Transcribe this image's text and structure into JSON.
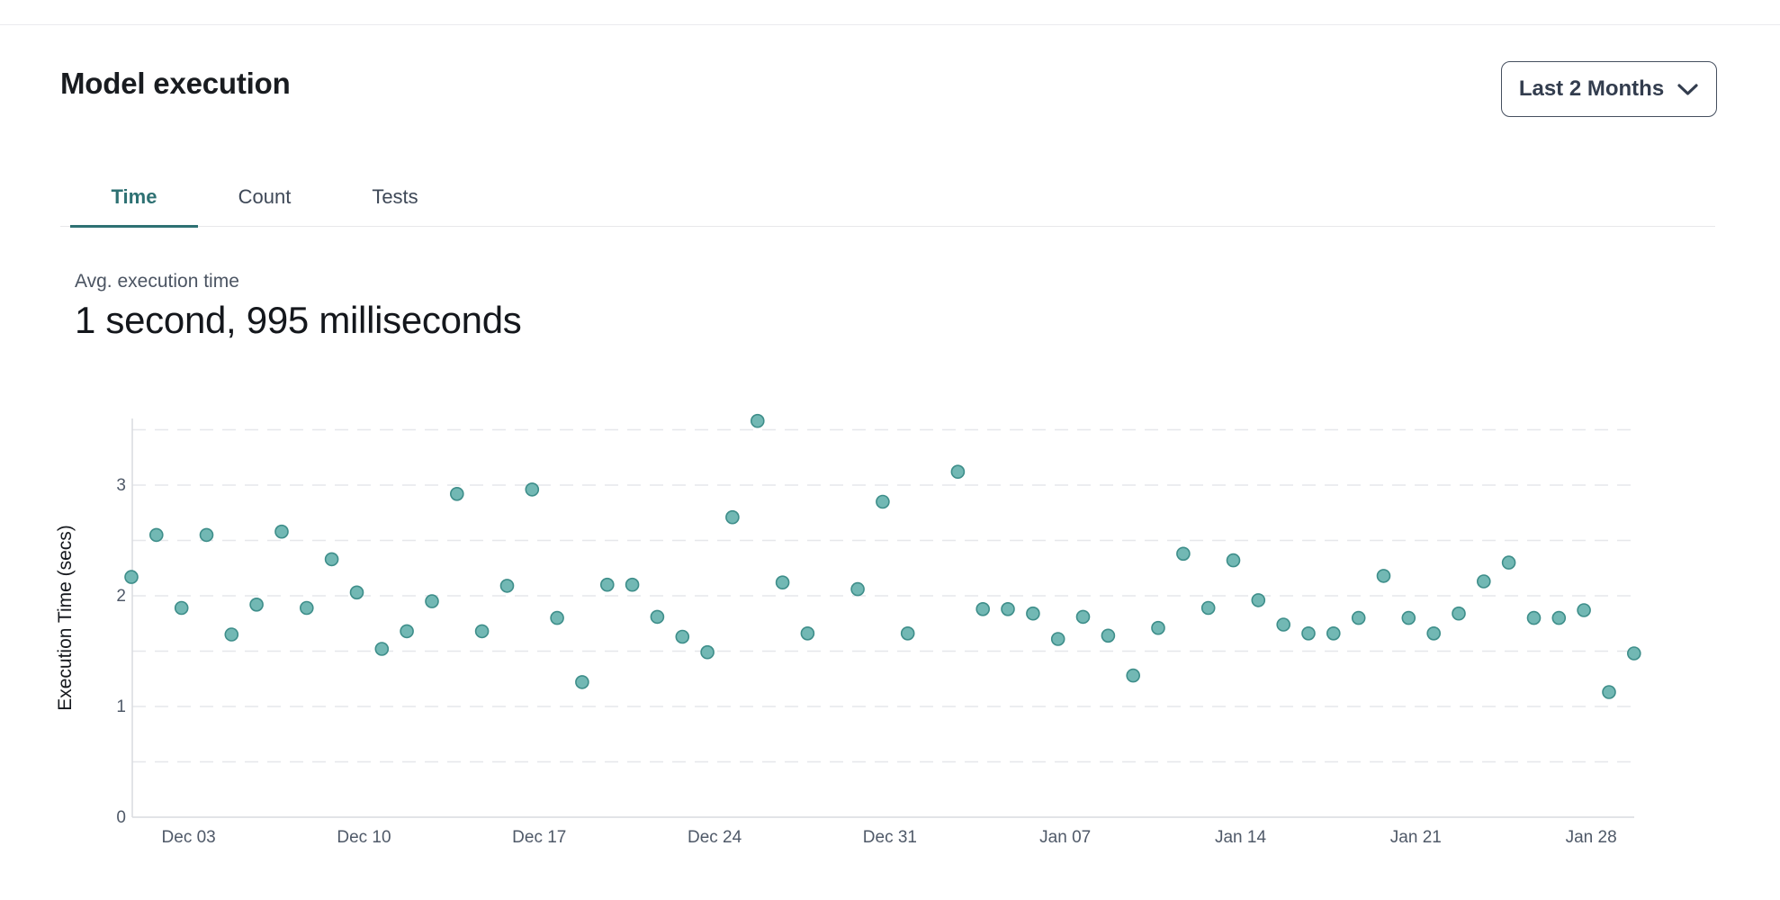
{
  "page": {
    "title": "Model execution"
  },
  "controls": {
    "date_range_label": "Last 2 Months"
  },
  "tabs": [
    {
      "label": "Time",
      "active": true
    },
    {
      "label": "Count",
      "active": false
    },
    {
      "label": "Tests",
      "active": false
    }
  ],
  "metric": {
    "label": "Avg. execution time",
    "value": "1 second, 995 milliseconds"
  },
  "colors": {
    "accent_teal": "#2e7173",
    "point_fill": "#72b8b4",
    "point_stroke": "#3e8e8a",
    "gridline": "#e6e7eb",
    "axis_line": "#d9dbdf",
    "tick_text": "#4f5968",
    "divider": "#ebebee"
  },
  "chart_data": {
    "type": "scatter",
    "title": "",
    "xlabel": "",
    "ylabel": "Execution Time (secs)",
    "ylim": [
      0,
      3.62
    ],
    "grid": "horizontal dashed every 0.5",
    "grid_values": [
      0.5,
      1,
      1.5,
      2,
      2.5,
      3,
      3.5
    ],
    "y_ticks": [
      0,
      1,
      2,
      3
    ],
    "x_tick_labels": [
      "Dec 03",
      "Dec 10",
      "Dec 17",
      "Dec 24",
      "Dec 31",
      "Jan 07",
      "Jan 14",
      "Jan 21",
      "Jan 28"
    ],
    "x_tick_days": [
      2,
      9,
      16,
      23,
      30,
      37,
      44,
      51,
      58
    ],
    "points": [
      {
        "date": "Dec 01",
        "day": 0,
        "secs": 2.17
      },
      {
        "date": "Dec 02",
        "day": 1,
        "secs": 2.55
      },
      {
        "date": "Dec 03",
        "day": 2,
        "secs": 1.89
      },
      {
        "date": "Dec 04",
        "day": 3,
        "secs": 2.55
      },
      {
        "date": "Dec 05",
        "day": 4,
        "secs": 1.65
      },
      {
        "date": "Dec 06",
        "day": 5,
        "secs": 1.92
      },
      {
        "date": "Dec 07",
        "day": 6,
        "secs": 2.58
      },
      {
        "date": "Dec 08",
        "day": 7,
        "secs": 1.89
      },
      {
        "date": "Dec 09",
        "day": 8,
        "secs": 2.33
      },
      {
        "date": "Dec 10",
        "day": 9,
        "secs": 2.03
      },
      {
        "date": "Dec 11",
        "day": 10,
        "secs": 1.52
      },
      {
        "date": "Dec 12",
        "day": 11,
        "secs": 1.68
      },
      {
        "date": "Dec 13",
        "day": 12,
        "secs": 1.95
      },
      {
        "date": "Dec 14",
        "day": 13,
        "secs": 2.92
      },
      {
        "date": "Dec 15",
        "day": 14,
        "secs": 1.68
      },
      {
        "date": "Dec 16",
        "day": 15,
        "secs": 2.09
      },
      {
        "date": "Dec 17",
        "day": 16,
        "secs": 2.96
      },
      {
        "date": "Dec 18",
        "day": 17,
        "secs": 1.8
      },
      {
        "date": "Dec 19",
        "day": 18,
        "secs": 1.22
      },
      {
        "date": "Dec 20",
        "day": 19,
        "secs": 2.1
      },
      {
        "date": "Dec 21",
        "day": 20,
        "secs": 2.1
      },
      {
        "date": "Dec 22",
        "day": 21,
        "secs": 1.81
      },
      {
        "date": "Dec 23",
        "day": 22,
        "secs": 1.63
      },
      {
        "date": "Dec 24",
        "day": 23,
        "secs": 1.49
      },
      {
        "date": "Dec 25",
        "day": 24,
        "secs": 2.71
      },
      {
        "date": "Dec 26",
        "day": 25,
        "secs": 3.58
      },
      {
        "date": "Dec 27",
        "day": 26,
        "secs": 2.12
      },
      {
        "date": "Dec 28",
        "day": 27,
        "secs": 1.66
      },
      {
        "date": "Dec 30",
        "day": 29,
        "secs": 2.06
      },
      {
        "date": "Dec 31",
        "day": 30,
        "secs": 2.85
      },
      {
        "date": "Jan 01",
        "day": 31,
        "secs": 1.66
      },
      {
        "date": "Jan 03",
        "day": 33,
        "secs": 3.12
      },
      {
        "date": "Jan 04",
        "day": 34,
        "secs": 1.88
      },
      {
        "date": "Jan 05",
        "day": 35,
        "secs": 1.88
      },
      {
        "date": "Jan 06",
        "day": 36,
        "secs": 1.84
      },
      {
        "date": "Jan 07",
        "day": 37,
        "secs": 1.61
      },
      {
        "date": "Jan 08",
        "day": 38,
        "secs": 1.81
      },
      {
        "date": "Jan 09",
        "day": 39,
        "secs": 1.64
      },
      {
        "date": "Jan 10",
        "day": 40,
        "secs": 1.28
      },
      {
        "date": "Jan 11",
        "day": 41,
        "secs": 1.71
      },
      {
        "date": "Jan 12",
        "day": 42,
        "secs": 2.38
      },
      {
        "date": "Jan 13",
        "day": 43,
        "secs": 1.89
      },
      {
        "date": "Jan 14",
        "day": 44,
        "secs": 2.32
      },
      {
        "date": "Jan 15",
        "day": 45,
        "secs": 1.96
      },
      {
        "date": "Jan 16",
        "day": 46,
        "secs": 1.74
      },
      {
        "date": "Jan 17",
        "day": 47,
        "secs": 1.66
      },
      {
        "date": "Jan 18",
        "day": 48,
        "secs": 1.66
      },
      {
        "date": "Jan 19",
        "day": 49,
        "secs": 1.8
      },
      {
        "date": "Jan 20",
        "day": 50,
        "secs": 2.18
      },
      {
        "date": "Jan 21",
        "day": 51,
        "secs": 1.8
      },
      {
        "date": "Jan 22",
        "day": 52,
        "secs": 1.66
      },
      {
        "date": "Jan 23",
        "day": 53,
        "secs": 1.84
      },
      {
        "date": "Jan 24",
        "day": 54,
        "secs": 2.13
      },
      {
        "date": "Jan 25",
        "day": 55,
        "secs": 2.3
      },
      {
        "date": "Jan 26",
        "day": 56,
        "secs": 1.8
      },
      {
        "date": "Jan 27",
        "day": 57,
        "secs": 1.8
      },
      {
        "date": "Jan 28",
        "day": 58,
        "secs": 1.87
      },
      {
        "date": "Jan 29",
        "day": 59,
        "secs": 1.13
      },
      {
        "date": "Jan 30",
        "day": 60,
        "secs": 1.48
      }
    ]
  }
}
